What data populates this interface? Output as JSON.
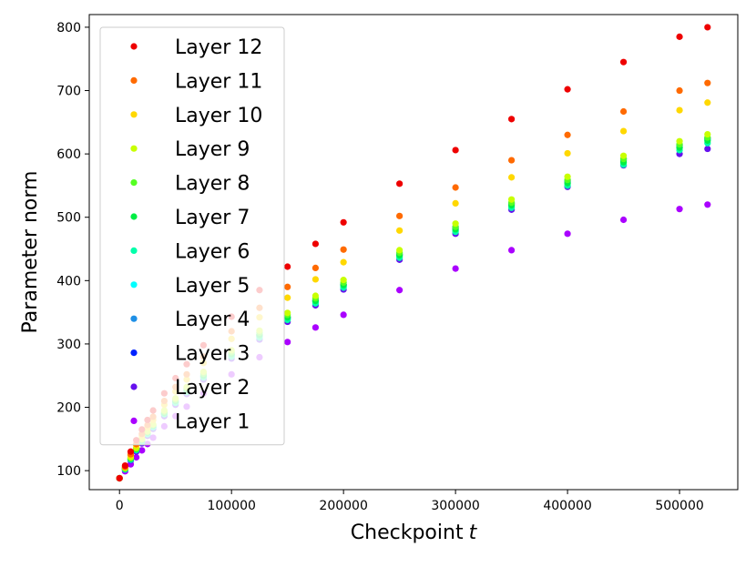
{
  "chart_data": {
    "type": "scatter",
    "title": "",
    "xlabel": "Checkpoint",
    "xlabel_var": "t",
    "ylabel": "Parameter norm",
    "xlim": [
      -27000,
      552000
    ],
    "ylim": [
      70,
      820
    ],
    "xticks": [
      0,
      100000,
      200000,
      300000,
      400000,
      500000
    ],
    "yticks": [
      100,
      200,
      300,
      400,
      500,
      600,
      700,
      800
    ],
    "grid": false,
    "legend_position": "upper-left",
    "x": [
      0,
      5000,
      10000,
      15000,
      20000,
      25000,
      30000,
      40000,
      50000,
      60000,
      75000,
      100000,
      125000,
      150000,
      175000,
      200000,
      250000,
      300000,
      350000,
      400000,
      450000,
      500000,
      525000
    ],
    "series": [
      {
        "name": "Layer 12",
        "color": "#ee0000",
        "values": [
          88,
          108,
          130,
          148,
          165,
          180,
          195,
          222,
          246,
          268,
          298,
          343,
          385,
          422,
          458,
          492,
          553,
          606,
          655,
          702,
          745,
          785,
          800
        ]
      },
      {
        "name": "Layer 11",
        "color": "#ff6a00",
        "values": [
          88,
          106,
          126,
          142,
          158,
          172,
          185,
          210,
          232,
          252,
          280,
          320,
          357,
          390,
          420,
          449,
          502,
          547,
          590,
          630,
          667,
          700,
          712
        ]
      },
      {
        "name": "Layer 10",
        "color": "#ffd800",
        "values": [
          88,
          105,
          124,
          140,
          155,
          168,
          180,
          204,
          225,
          244,
          270,
          308,
          342,
          373,
          402,
          429,
          479,
          522,
          563,
          601,
          636,
          669,
          681
        ]
      },
      {
        "name": "Layer 9",
        "color": "#c8ff00",
        "values": [
          88,
          104,
          121,
          136,
          150,
          162,
          173,
          195,
          214,
          232,
          256,
          290,
          321,
          349,
          376,
          401,
          448,
          490,
          528,
          564,
          597,
          620,
          631
        ]
      },
      {
        "name": "Layer 8",
        "color": "#55ff22",
        "values": [
          88,
          104,
          120,
          135,
          149,
          161,
          172,
          193,
          212,
          230,
          253,
          287,
          318,
          346,
          372,
          397,
          444,
          485,
          523,
          559,
          592,
          615,
          626
        ]
      },
      {
        "name": "Layer 7",
        "color": "#00ee44",
        "values": [
          88,
          103,
          119,
          134,
          148,
          160,
          171,
          191,
          210,
          227,
          250,
          284,
          314,
          342,
          368,
          393,
          440,
          481,
          519,
          554,
          587,
          610,
          621
        ]
      },
      {
        "name": "Layer 6",
        "color": "#00ffaa",
        "values": [
          88,
          102,
          118,
          133,
          146,
          158,
          169,
          189,
          207,
          224,
          247,
          280,
          310,
          338,
          364,
          389,
          436,
          477,
          515,
          550,
          583,
          606,
          617
        ]
      },
      {
        "name": "Layer 5",
        "color": "#00ffff",
        "values": [
          88,
          102,
          118,
          133,
          146,
          158,
          169,
          190,
          208,
          225,
          248,
          281,
          312,
          340,
          366,
          391,
          438,
          479,
          517,
          553,
          586,
          610,
          622
        ]
      },
      {
        "name": "Layer 4",
        "color": "#1e8fe6",
        "values": [
          88,
          102,
          117,
          132,
          145,
          157,
          168,
          189,
          207,
          224,
          247,
          281,
          312,
          340,
          367,
          392,
          440,
          482,
          520,
          556,
          590,
          614,
          625
        ]
      },
      {
        "name": "Layer 3",
        "color": "#0022ff",
        "values": [
          88,
          103,
          118,
          133,
          146,
          158,
          169,
          190,
          209,
          226,
          249,
          283,
          314,
          342,
          369,
          394,
          442,
          484,
          522,
          558,
          592,
          614,
          624
        ]
      },
      {
        "name": "Layer 2",
        "color": "#6611ee",
        "values": [
          88,
          102,
          116,
          130,
          143,
          155,
          166,
          186,
          204,
          221,
          244,
          277,
          307,
          335,
          361,
          386,
          433,
          474,
          512,
          548,
          582,
          600,
          608
        ]
      },
      {
        "name": "Layer 1",
        "color": "#aa00ff",
        "values": [
          88,
          99,
          110,
          121,
          132,
          142,
          152,
          170,
          186,
          201,
          222,
          252,
          279,
          303,
          326,
          346,
          385,
          419,
          448,
          474,
          496,
          513,
          520
        ]
      }
    ]
  }
}
